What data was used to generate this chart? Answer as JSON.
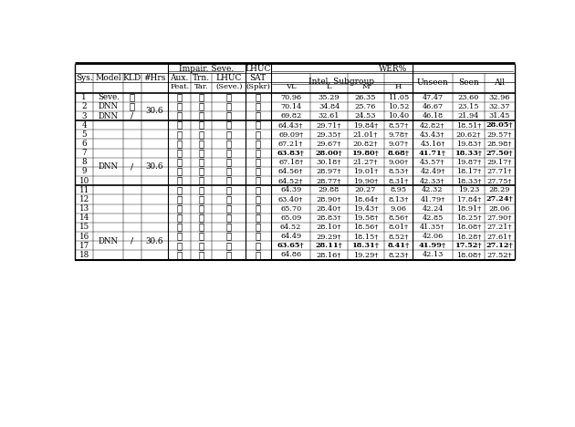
{
  "rows": [
    {
      "sys": "1",
      "model": "Seve.",
      "kld": "x",
      "hrs": "",
      "aux": "x",
      "trn": "x",
      "lhuc": "x",
      "sat": "x",
      "vl": "70.96",
      "l": "35.29",
      "m": "26.35",
      "h": "11.05",
      "unseen": "47.47",
      "seen": "23.60",
      "all": "32.96",
      "bold": []
    },
    {
      "sys": "2",
      "model": "DNN",
      "kld": "c",
      "hrs": "30.6",
      "aux": "x",
      "trn": "x",
      "lhuc": "x",
      "sat": "x",
      "vl": "70.14",
      "l": "34.84",
      "m": "25.76",
      "h": "10.52",
      "unseen": "46.67",
      "seen": "23.15",
      "all": "32.37",
      "bold": []
    },
    {
      "sys": "3",
      "model": "DNN",
      "kld": "/",
      "hrs": "",
      "aux": "x",
      "trn": "x",
      "lhuc": "x",
      "sat": "x",
      "vl": "69.82",
      "l": "32.61",
      "m": "24.53",
      "h": "10.40",
      "unseen": "46.18",
      "seen": "21.94",
      "all": "31.45",
      "bold": []
    },
    {
      "sys": "4",
      "model": "",
      "kld": "",
      "hrs": "",
      "aux": "c",
      "trn": "x",
      "lhuc": "x",
      "sat": "x",
      "vl": "64.43†",
      "l": "29.71†",
      "m": "19.84†",
      "h": "8.57†",
      "unseen": "42.82†",
      "seen": "18.51†",
      "all": "28.05†",
      "bold": [
        "all"
      ]
    },
    {
      "sys": "5",
      "model": "",
      "kld": "",
      "hrs": "",
      "aux": "x",
      "trn": "c",
      "lhuc": "x",
      "sat": "x",
      "vl": "69.09†",
      "l": "29.35†",
      "m": "21.01†",
      "h": "9.78†",
      "unseen": "43.43†",
      "seen": "20.62†",
      "all": "29.57†",
      "bold": []
    },
    {
      "sys": "6",
      "model": "",
      "kld": "",
      "hrs": "",
      "aux": "x",
      "trn": "x",
      "lhuc": "c",
      "sat": "x",
      "vl": "67.21†",
      "l": "29.67†",
      "m": "20.82†",
      "h": "9.07†",
      "unseen": "43.16†",
      "seen": "19.83†",
      "all": "28.98†",
      "bold": []
    },
    {
      "sys": "7",
      "model": "DNN",
      "kld": "/",
      "hrs": "30.6",
      "aux": "c",
      "trn": "c",
      "lhuc": "x",
      "sat": "x",
      "vl": "63.83†",
      "l": "28.00†",
      "m": "19.80†",
      "h": "8.68†",
      "unseen": "41.71†",
      "seen": "18.33†",
      "all": "27.50†",
      "bold": [
        "vl",
        "l",
        "m",
        "h",
        "unseen",
        "seen",
        "all"
      ]
    },
    {
      "sys": "8",
      "model": "",
      "kld": "",
      "hrs": "",
      "aux": "x",
      "trn": "c",
      "lhuc": "c",
      "sat": "x",
      "vl": "67.18†",
      "l": "30.18†",
      "m": "21.27†",
      "h": "9.00†",
      "unseen": "43.57†",
      "seen": "19.87†",
      "all": "29.17†",
      "bold": []
    },
    {
      "sys": "9",
      "model": "",
      "kld": "",
      "hrs": "",
      "aux": "c",
      "trn": "x",
      "lhuc": "c",
      "sat": "x",
      "vl": "64.56†",
      "l": "28.97†",
      "m": "19.01†",
      "h": "8.53†",
      "unseen": "42.49†",
      "seen": "18.17†",
      "all": "27.71†",
      "bold": []
    },
    {
      "sys": "10",
      "model": "",
      "kld": "",
      "hrs": "",
      "aux": "c",
      "trn": "c",
      "lhuc": "c",
      "sat": "x",
      "vl": "64.52†",
      "l": "28.77†",
      "m": "19.90†",
      "h": "8.31†",
      "unseen": "42.33†",
      "seen": "18.33†",
      "all": "27.75†",
      "bold": []
    },
    {
      "sys": "11",
      "model": "",
      "kld": "",
      "hrs": "",
      "aux": "x",
      "trn": "x",
      "lhuc": "x",
      "sat": "c",
      "vl": "64.39",
      "l": "29.88",
      "m": "20.27",
      "h": "8.95",
      "unseen": "42.32",
      "seen": "19.23",
      "all": "28.29",
      "bold": []
    },
    {
      "sys": "12",
      "model": "",
      "kld": "",
      "hrs": "",
      "aux": "c",
      "trn": "x",
      "lhuc": "x",
      "sat": "c",
      "vl": "63.40†",
      "l": "28.90†",
      "m": "18.64†",
      "h": "8.13†",
      "unseen": "41.79†",
      "seen": "17.84†",
      "all": "27.24†",
      "bold": [
        "all"
      ]
    },
    {
      "sys": "13",
      "model": "",
      "kld": "",
      "hrs": "",
      "aux": "x",
      "trn": "c",
      "lhuc": "x",
      "sat": "c",
      "vl": "65.70",
      "l": "28.40†",
      "m": "19.43†",
      "h": "9.06",
      "unseen": "42.24",
      "seen": "18.91†",
      "all": "28.06",
      "bold": []
    },
    {
      "sys": "14",
      "model": "",
      "kld": "",
      "hrs": "",
      "aux": "x",
      "trn": "x",
      "lhuc": "c",
      "sat": "c",
      "vl": "65.09",
      "l": "28.83†",
      "m": "19.58†",
      "h": "8.56†",
      "unseen": "42.85",
      "seen": "18.25†",
      "all": "27.90†",
      "bold": []
    },
    {
      "sys": "15",
      "model": "DNN",
      "kld": "/",
      "hrs": "30.6",
      "aux": "c",
      "trn": "c",
      "lhuc": "x",
      "sat": "c",
      "vl": "64.52",
      "l": "28.10†",
      "m": "18.56†",
      "h": "8.01†",
      "unseen": "41.35†",
      "seen": "18.08†",
      "all": "27.21†",
      "bold": []
    },
    {
      "sys": "16",
      "model": "",
      "kld": "",
      "hrs": "",
      "aux": "x",
      "trn": "c",
      "lhuc": "c",
      "sat": "c",
      "vl": "64.49",
      "l": "29.29†",
      "m": "18.15†",
      "h": "8.52†",
      "unseen": "42.06",
      "seen": "18.28†",
      "all": "27.61†",
      "bold": []
    },
    {
      "sys": "17",
      "model": "",
      "kld": "",
      "hrs": "",
      "aux": "c",
      "trn": "x",
      "lhuc": "c",
      "sat": "c",
      "vl": "63.65†",
      "l": "28.11†",
      "m": "18.31†",
      "h": "8.41†",
      "unseen": "41.99†",
      "seen": "17.52†",
      "all": "27.12†",
      "bold": [
        "vl",
        "l",
        "m",
        "h",
        "unseen",
        "seen",
        "all"
      ]
    },
    {
      "sys": "18",
      "model": "",
      "kld": "",
      "hrs": "",
      "aux": "c",
      "trn": "c",
      "lhuc": "c",
      "sat": "c",
      "vl": "64.86",
      "l": "28.16†",
      "m": "19.29†",
      "h": "8.23†",
      "unseen": "42.13",
      "seen": "18.08†",
      "all": "27.52†",
      "bold": []
    }
  ],
  "model_spans": [
    [
      1,
      1,
      "Seve."
    ],
    [
      2,
      2,
      "DNN"
    ],
    [
      3,
      3,
      "DNN"
    ],
    [
      7,
      10,
      "DNN"
    ],
    [
      15,
      18,
      "DNN"
    ]
  ],
  "kld_spans": [
    [
      1,
      1,
      "x"
    ],
    [
      2,
      2,
      "c"
    ],
    [
      3,
      3,
      "/"
    ],
    [
      7,
      10,
      "/"
    ],
    [
      15,
      18,
      "/"
    ]
  ],
  "hrs_spans": [
    [
      2,
      3,
      "30.6"
    ],
    [
      7,
      10,
      "30.6"
    ],
    [
      15,
      18,
      "30.6"
    ]
  ]
}
